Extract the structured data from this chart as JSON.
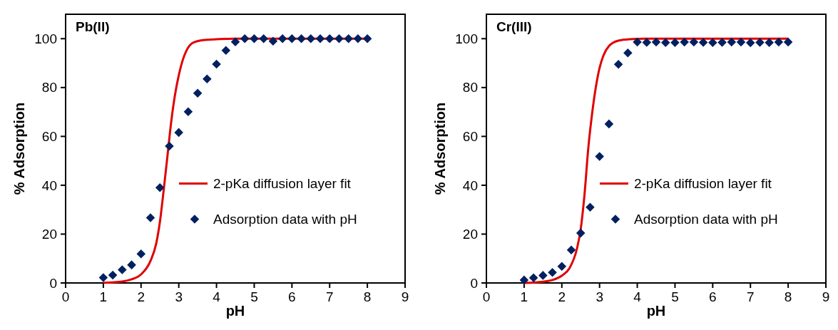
{
  "chart_data": [
    {
      "type": "scatter",
      "title": "Pb(II)",
      "xlabel": "pH",
      "ylabel": "% Adsorption",
      "xlim": [
        0,
        9
      ],
      "xticks": [
        0,
        1,
        2,
        3,
        4,
        5,
        6,
        7,
        8,
        9
      ],
      "ylim": [
        0,
        110
      ],
      "yticks": [
        0,
        20,
        40,
        60,
        80,
        100
      ],
      "legend": "right",
      "grid": false,
      "series": [
        {
          "type": "line",
          "name": "2-pKa diffusion layer fit",
          "color": "#e00000",
          "line_style": "solid",
          "marker": "none",
          "x": [
            1,
            1.5,
            1.75,
            2,
            2.25,
            2.4,
            2.5,
            2.6,
            2.7,
            2.8,
            2.9,
            3,
            3.1,
            3.2,
            3.4,
            3.7,
            4.5,
            8
          ],
          "values": [
            0.1,
            0.6,
            1.5,
            3.5,
            9,
            16,
            25,
            38,
            52,
            66,
            77,
            85,
            91,
            95,
            98.5,
            99.5,
            100,
            100
          ]
        },
        {
          "name": "Adsorption data with pH",
          "color": "#002060",
          "marker": "diamond",
          "x": [
            1,
            1.25,
            1.5,
            1.75,
            2,
            2.25,
            2.5,
            2.75,
            3,
            3.25,
            3.5,
            3.75,
            4,
            4.25,
            4.5,
            4.75,
            5,
            5.25,
            5.5,
            5.75,
            6,
            6.25,
            6.5,
            6.75,
            7,
            7.25,
            7.5,
            7.75,
            8
          ],
          "values": [
            2.2,
            3.2,
            5.4,
            7.4,
            11.9,
            26.7,
            39,
            56,
            61.6,
            70.1,
            77.7,
            83.5,
            89.6,
            95.2,
            98.7,
            100,
            100,
            100,
            99,
            100,
            100,
            100,
            100,
            100,
            100,
            100,
            100,
            100,
            100
          ]
        }
      ]
    },
    {
      "type": "scatter",
      "title": "Cr(III)",
      "xlabel": "pH",
      "ylabel": "% Adsorption",
      "xlim": [
        0,
        9
      ],
      "xticks": [
        0,
        1,
        2,
        3,
        4,
        5,
        6,
        7,
        8,
        9
      ],
      "ylim": [
        0,
        110
      ],
      "yticks": [
        0,
        20,
        40,
        60,
        80,
        100
      ],
      "legend": "right",
      "grid": false,
      "series": [
        {
          "type": "line",
          "name": "2-pKa diffusion layer fit",
          "color": "#e00000",
          "line_style": "solid",
          "marker": "none",
          "x": [
            1,
            1.5,
            1.75,
            2,
            2.2,
            2.4,
            2.5,
            2.6,
            2.7,
            2.8,
            2.9,
            3,
            3.1,
            3.25,
            3.5,
            3.8,
            4.2,
            8
          ],
          "values": [
            0,
            0.5,
            1.2,
            3,
            6,
            14,
            22,
            36,
            55,
            69,
            80,
            88,
            93,
            97,
            99.2,
            99.8,
            100,
            100
          ]
        },
        {
          "name": "Adsorption data with pH",
          "color": "#002060",
          "marker": "diamond",
          "x": [
            1,
            1.25,
            1.5,
            1.75,
            2,
            2.25,
            2.5,
            2.75,
            3,
            3.25,
            3.5,
            3.75,
            4,
            4.25,
            4.5,
            4.75,
            5,
            5.25,
            5.5,
            5.75,
            6,
            6.25,
            6.5,
            6.75,
            7,
            7.25,
            7.5,
            7.75,
            8
          ],
          "values": [
            1.2,
            2.1,
            3.1,
            4.3,
            6.8,
            13.5,
            20.4,
            31,
            51.8,
            65.1,
            89.5,
            94.2,
            98.6,
            98.5,
            98.6,
            98.4,
            98.4,
            98.6,
            98.6,
            98.5,
            98.4,
            98.5,
            98.6,
            98.6,
            98.3,
            98.5,
            98.4,
            98.6,
            98.6
          ]
        }
      ]
    }
  ]
}
